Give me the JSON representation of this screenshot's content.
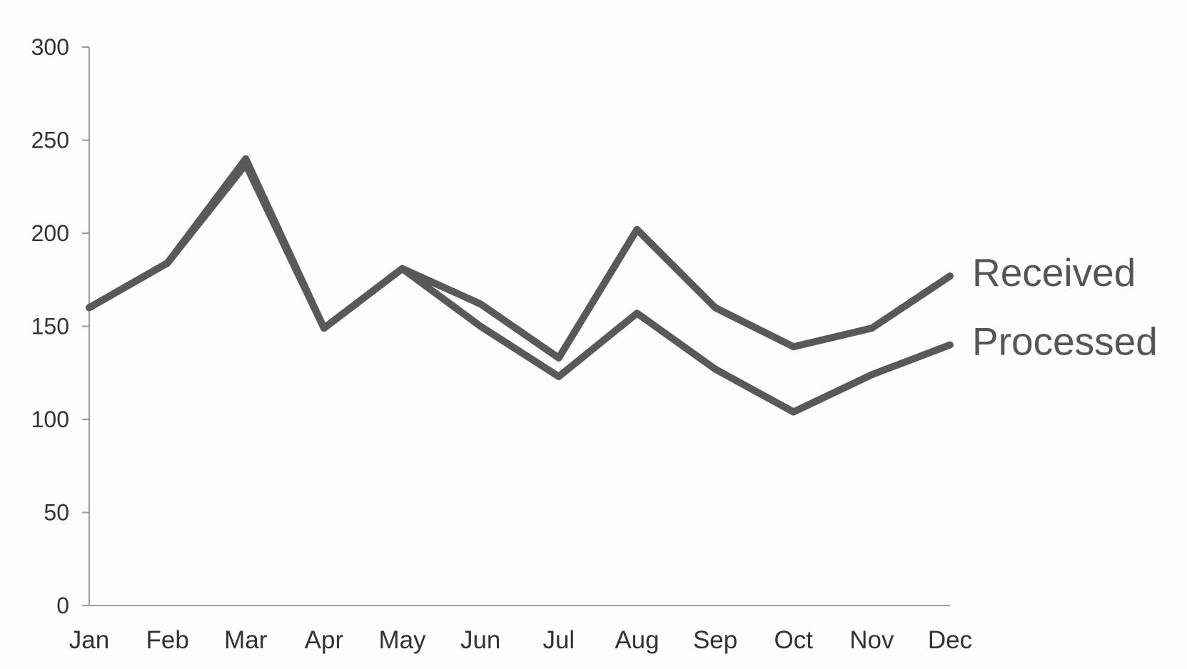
{
  "chart_data": {
    "type": "line",
    "title": "",
    "xlabel": "",
    "ylabel": "",
    "categories": [
      "Jan",
      "Feb",
      "Mar",
      "Apr",
      "May",
      "Jun",
      "Jul",
      "Aug",
      "Sep",
      "Oct",
      "Nov",
      "Dec"
    ],
    "ylim": [
      0,
      300
    ],
    "yticks": [
      0,
      50,
      100,
      150,
      200,
      250,
      300
    ],
    "grid": false,
    "legend": "direct labels at line ends (right)",
    "series": [
      {
        "name": "Received",
        "values": [
          160,
          184,
          240,
          149,
          181,
          162,
          133,
          202,
          160,
          139,
          149,
          177
        ],
        "color": "#595959"
      },
      {
        "name": "Processed",
        "values": [
          160,
          184,
          237,
          149,
          181,
          150,
          123,
          157,
          127,
          104,
          124,
          140
        ],
        "color": "#595959"
      }
    ],
    "colors": {
      "axis": "#9a9a9a",
      "text": "#333333",
      "background": "#fdfdfd"
    }
  }
}
